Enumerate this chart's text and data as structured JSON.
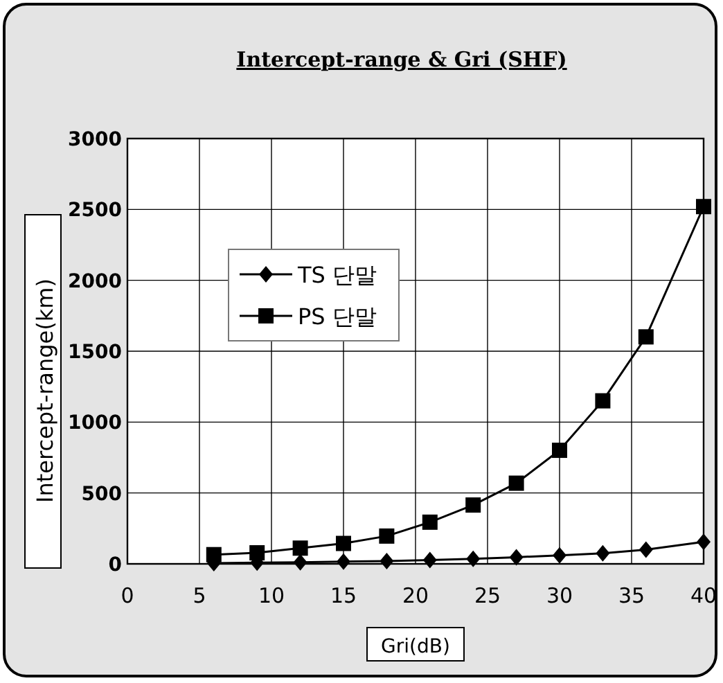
{
  "chart_data": {
    "type": "line",
    "title": "Intercept-range & Gri (SHF)",
    "xlabel": "Gri(dB)",
    "ylabel": "Intercept-range(km)",
    "x": [
      6,
      9,
      12,
      15,
      18,
      21,
      24,
      27,
      30,
      33,
      36,
      40
    ],
    "xlim": [
      0,
      40
    ],
    "xticks": [
      0,
      5,
      10,
      15,
      20,
      25,
      30,
      35,
      40
    ],
    "ylim": [
      0,
      3000
    ],
    "yticks": [
      0,
      500,
      1000,
      1500,
      2000,
      2500,
      3000
    ],
    "grid": true,
    "legend": "top left",
    "line_style": "solid",
    "series": [
      {
        "name": "TS 단말",
        "color": "#000000",
        "marker": "diamond",
        "values": [
          5,
          8,
          11,
          16,
          20,
          27,
          35,
          47,
          60,
          75,
          100,
          155
        ]
      },
      {
        "name": "PS 단말",
        "color": "#000000",
        "marker": "square",
        "values": [
          65,
          78,
          111,
          144,
          196,
          294,
          415,
          569,
          801,
          1150,
          1601,
          2520
        ]
      }
    ]
  }
}
